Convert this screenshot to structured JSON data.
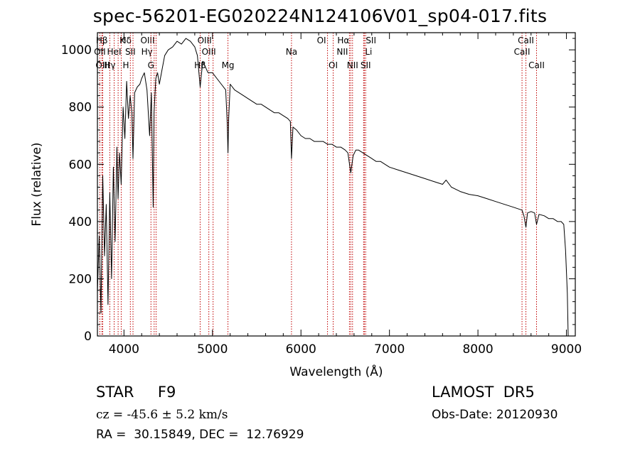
{
  "chart_data": {
    "type": "line",
    "title": "spec-56201-EG020224N124106V01_sp04-017.fits",
    "xlabel": "Wavelength (Å)",
    "ylabel": "Flux (relative)",
    "xlim": [
      3700,
      9100
    ],
    "ylim": [
      0,
      1060
    ],
    "xticks": [
      4000,
      5000,
      6000,
      7000,
      8000,
      9000
    ],
    "yticks": [
      0,
      200,
      400,
      600,
      800,
      1000
    ],
    "grid": false,
    "line_color": "#000000",
    "marker_color": "#c00000",
    "series": [
      {
        "x": [
          3700,
          3720,
          3740,
          3760,
          3780,
          3800,
          3820,
          3840,
          3860,
          3880,
          3900,
          3920,
          3933,
          3950,
          3968,
          3990,
          4010,
          4030,
          4050,
          4070,
          4090,
          4102,
          4120,
          4150,
          4180,
          4200,
          4230,
          4260,
          4290,
          4310,
          4330,
          4340,
          4360,
          4380,
          4400,
          4430,
          4460,
          4500,
          4550,
          4600,
          4650,
          4700,
          4750,
          4800,
          4830,
          4861,
          4890,
          4920,
          4950,
          5000,
          5050,
          5100,
          5150,
          5167,
          5175,
          5183,
          5200,
          5250,
          5300,
          5350,
          5400,
          5450,
          5500,
          5550,
          5600,
          5650,
          5700,
          5750,
          5800,
          5850,
          5880,
          5893,
          5910,
          5950,
          6000,
          6050,
          6100,
          6150,
          6200,
          6250,
          6300,
          6350,
          6400,
          6450,
          6500,
          6530,
          6563,
          6590,
          6620,
          6650,
          6700,
          6750,
          6800,
          6850,
          6900,
          6950,
          7000,
          7100,
          7200,
          7300,
          7400,
          7500,
          7600,
          7640,
          7700,
          7800,
          7900,
          8000,
          8100,
          8200,
          8300,
          8400,
          8498,
          8520,
          8542,
          8560,
          8600,
          8640,
          8662,
          8690,
          8750,
          8800,
          8850,
          8900,
          8940,
          8970,
          8990,
          9010,
          9020
        ],
        "y": [
          150,
          350,
          80,
          560,
          280,
          460,
          110,
          500,
          200,
          590,
          330,
          660,
          480,
          640,
          530,
          800,
          690,
          890,
          760,
          840,
          780,
          620,
          850,
          870,
          880,
          900,
          920,
          860,
          700,
          850,
          450,
          780,
          900,
          920,
          880,
          930,
          980,
          1000,
          1010,
          1030,
          1020,
          1040,
          1030,
          1010,
          980,
          870,
          960,
          940,
          920,
          920,
          900,
          880,
          860,
          740,
          640,
          760,
          880,
          860,
          850,
          840,
          830,
          820,
          810,
          810,
          800,
          790,
          780,
          780,
          770,
          760,
          750,
          620,
          730,
          720,
          700,
          690,
          690,
          680,
          680,
          680,
          670,
          670,
          660,
          660,
          650,
          640,
          570,
          630,
          650,
          650,
          640,
          630,
          620,
          610,
          610,
          600,
          590,
          580,
          570,
          560,
          550,
          540,
          530,
          545,
          520,
          505,
          495,
          490,
          480,
          470,
          460,
          450,
          440,
          420,
          380,
          430,
          435,
          430,
          390,
          425,
          420,
          410,
          410,
          400,
          400,
          390,
          300,
          150,
          0
        ]
      }
    ],
    "line_markers": [
      {
        "label": "Hβ",
        "x": 3750,
        "row": 0,
        "align": "center"
      },
      {
        "label": "K",
        "x": 3934,
        "row": 0,
        "align": "left"
      },
      {
        "label": "Hδ",
        "x": 4102,
        "row": 0,
        "align": "right"
      },
      {
        "label": "OIII",
        "x": 4363,
        "row": 0,
        "align": "right"
      },
      {
        "label": "OIII",
        "x": 5007,
        "row": 0,
        "align": "right"
      },
      {
        "label": "OI",
        "x": 6300,
        "row": 0,
        "align": "right"
      },
      {
        "label": "Hα",
        "x": 6563,
        "row": 0,
        "align": "right"
      },
      {
        "label": "SII",
        "x": 6716,
        "row": 0,
        "align": "left"
      },
      {
        "label": "CaII",
        "x": 8542,
        "row": 0,
        "align": "center"
      },
      {
        "label": "OII",
        "x": 3727,
        "row": 1,
        "align": "center"
      },
      {
        "label": "HeI",
        "x": 3889,
        "row": 1,
        "align": "center"
      },
      {
        "label": "SII",
        "x": 4072,
        "row": 1,
        "align": "center"
      },
      {
        "label": "Hγ",
        "x": 4341,
        "row": 1,
        "align": "right"
      },
      {
        "label": "OIII",
        "x": 4959,
        "row": 1,
        "align": "center"
      },
      {
        "label": "Na",
        "x": 5893,
        "row": 1,
        "align": "center"
      },
      {
        "label": "NII",
        "x": 6548,
        "row": 1,
        "align": "right"
      },
      {
        "label": "Li",
        "x": 6708,
        "row": 1,
        "align": "left"
      },
      {
        "label": "CaII",
        "x": 8498,
        "row": 1,
        "align": "center"
      },
      {
        "label": "OIII",
        "x": 3760,
        "row": 2,
        "align": "center"
      },
      {
        "label": "Hγ",
        "x": 3840,
        "row": 2,
        "align": "center"
      },
      {
        "label": "H",
        "x": 3969,
        "row": 2,
        "align": "left"
      },
      {
        "label": "G",
        "x": 4305,
        "row": 2,
        "align": "center"
      },
      {
        "label": "Hβ",
        "x": 4861,
        "row": 2,
        "align": "center"
      },
      {
        "label": "Mg",
        "x": 5175,
        "row": 2,
        "align": "center"
      },
      {
        "label": "OI",
        "x": 6364,
        "row": 2,
        "align": "center"
      },
      {
        "label": "NII",
        "x": 6583,
        "row": 2,
        "align": "center"
      },
      {
        "label": "SII",
        "x": 6731,
        "row": 2,
        "align": "center"
      },
      {
        "label": "CaII",
        "x": 8662,
        "row": 2,
        "align": "center"
      }
    ]
  },
  "info": {
    "object": "STAR     F9",
    "cz": "cz = -45.6 ± 5.2 km/s",
    "radec": "RA =  30.15849, DEC =  12.76929",
    "survey": "LAMOST  DR5",
    "obs_date": "Obs-Date: 20120930"
  }
}
